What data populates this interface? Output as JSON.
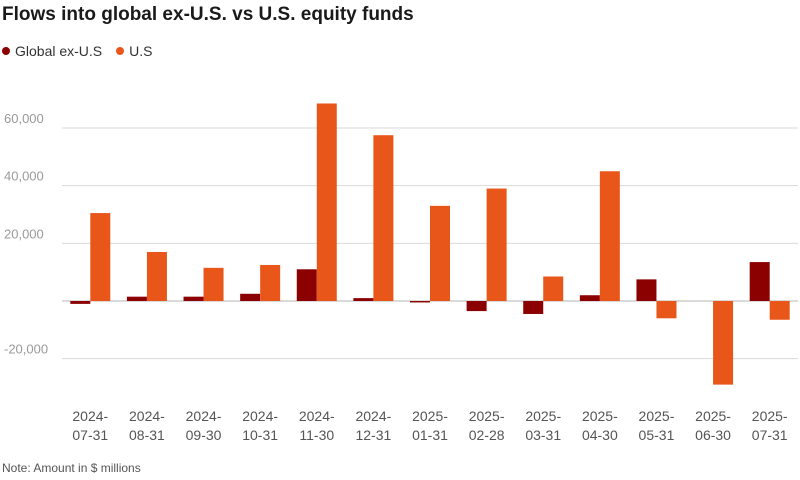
{
  "title": "Flows into global ex-U.S. vs U.S. equity funds",
  "note": "Note: Amount in $ millions",
  "colors": {
    "global_ex_us": "#8b0000",
    "us": "#e8561a",
    "grid": "#d9d9d9",
    "tick_text": "#9a9a9a",
    "axis_text": "#555555"
  },
  "chart_data": {
    "type": "bar",
    "categories": [
      "2024-07-31",
      "2024-08-31",
      "2024-09-30",
      "2024-10-31",
      "2024-11-30",
      "2024-12-31",
      "2025-01-31",
      "2025-02-28",
      "2025-03-31",
      "2025-04-30",
      "2025-05-31",
      "2025-06-30",
      "2025-07-31"
    ],
    "series": [
      {
        "name": "Global ex-U.S",
        "color_key": "global_ex_us",
        "values": [
          -1000,
          1500,
          1500,
          2500,
          11000,
          1000,
          -500,
          -3500,
          -4500,
          2000,
          7500,
          0,
          13500
        ]
      },
      {
        "name": "U.S",
        "color_key": "us",
        "values": [
          30500,
          17000,
          11500,
          12500,
          68500,
          57500,
          33000,
          39000,
          8500,
          45000,
          -6000,
          -29000,
          -6500
        ]
      }
    ],
    "yticks": [
      -20000,
      20000,
      40000,
      60000
    ],
    "ytick_labels": [
      "-20,000",
      "20,000",
      "40,000",
      "60,000"
    ],
    "ylim": [
      -32000,
      74000
    ],
    "grid": true,
    "legend_position": "top-left",
    "xlabel": "",
    "ylabel": ""
  }
}
